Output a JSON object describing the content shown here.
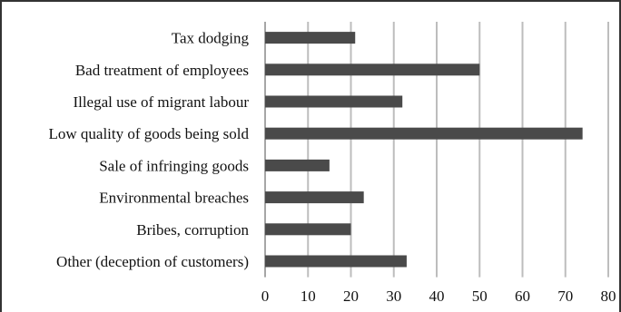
{
  "chart_data": {
    "type": "bar",
    "orientation": "horizontal",
    "title": "",
    "xlabel": "",
    "ylabel": "",
    "categories": [
      "Tax dodging",
      "Bad treatment of employees",
      "Illegal use of migrant labour",
      "Low quality of goods being sold",
      "Sale of infringing goods",
      "Environmental breaches",
      "Bribes, corruption",
      "Other (deception of customers)"
    ],
    "values": [
      21,
      50,
      32,
      74,
      15,
      23,
      20,
      33
    ],
    "xlim": [
      0,
      80
    ],
    "xticks": [
      0,
      10,
      20,
      30,
      40,
      50,
      60,
      70,
      80
    ],
    "grid": "vertical",
    "legend": "none",
    "bar_color": "#4a4a4a",
    "grid_color": "#bdbdbd"
  }
}
